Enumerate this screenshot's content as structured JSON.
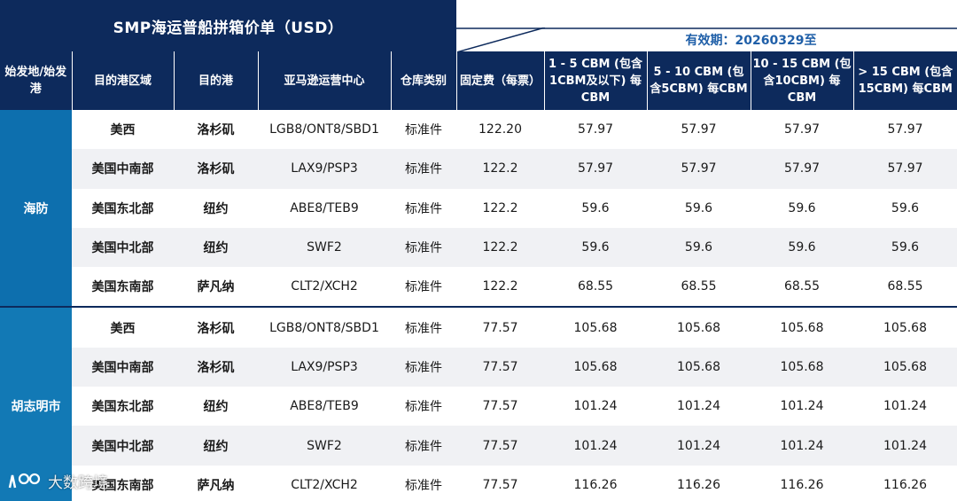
{
  "title": "SMP海运普船拼箱价单（USD）",
  "validity": "有效期：20260329至",
  "headers": [
    "始发地/始发港",
    "目的港区域",
    "目的港",
    "亚马逊运营中心",
    "仓库类别",
    "固定费（每票）",
    "1 - 5 CBM (包含1CBM及以下) 每CBM",
    "5 - 10 CBM (包含5CBM) 每CBM",
    "10 - 15 CBM (包含10CBM) 每CBM",
    "> 15 CBM (包含15CBM) 每CBM"
  ],
  "groups": [
    {
      "origin": "海防",
      "rows": [
        {
          "region": "美西",
          "port": "洛杉矶",
          "fc": "LGB8/ONT8/SBD1",
          "category": "标准件",
          "fixed": "122.20",
          "r1": "57.97",
          "r2": "57.97",
          "r3": "57.97",
          "r4": "57.97"
        },
        {
          "region": "美国中南部",
          "port": "洛杉矶",
          "fc": "LAX9/PSP3",
          "category": "标准件",
          "fixed": "122.2",
          "r1": "57.97",
          "r2": "57.97",
          "r3": "57.97",
          "r4": "57.97"
        },
        {
          "region": "美国东北部",
          "port": "纽约",
          "fc": "ABE8/TEB9",
          "category": "标准件",
          "fixed": "122.2",
          "r1": "59.6",
          "r2": "59.6",
          "r3": "59.6",
          "r4": "59.6"
        },
        {
          "region": "美国中北部",
          "port": "纽约",
          "fc": "SWF2",
          "category": "标准件",
          "fixed": "122.2",
          "r1": "59.6",
          "r2": "59.6",
          "r3": "59.6",
          "r4": "59.6"
        },
        {
          "region": "美国东南部",
          "port": "萨凡纳",
          "fc": "CLT2/XCH2",
          "category": "标准件",
          "fixed": "122.2",
          "r1": "68.55",
          "r2": "68.55",
          "r3": "68.55",
          "r4": "68.55"
        }
      ]
    },
    {
      "origin": "胡志明市",
      "rows": [
        {
          "region": "美西",
          "port": "洛杉矶",
          "fc": "LGB8/ONT8/SBD1",
          "category": "标准件",
          "fixed": "77.57",
          "r1": "105.68",
          "r2": "105.68",
          "r3": "105.68",
          "r4": "105.68"
        },
        {
          "region": "美国中南部",
          "port": "洛杉矶",
          "fc": "LAX9/PSP3",
          "category": "标准件",
          "fixed": "77.57",
          "r1": "105.68",
          "r2": "105.68",
          "r3": "105.68",
          "r4": "105.68"
        },
        {
          "region": "美国东北部",
          "port": "纽约",
          "fc": "ABE8/TEB9",
          "category": "标准件",
          "fixed": "77.57",
          "r1": "101.24",
          "r2": "101.24",
          "r3": "101.24",
          "r4": "101.24"
        },
        {
          "region": "美国中北部",
          "port": "纽约",
          "fc": "SWF2",
          "category": "标准件",
          "fixed": "77.57",
          "r1": "101.24",
          "r2": "101.24",
          "r3": "101.24",
          "r4": "101.24"
        },
        {
          "region": "美国东南部",
          "port": "萨凡纳",
          "fc": "CLT2/XCH2",
          "category": "标准件",
          "fixed": "77.57",
          "r1": "116.26",
          "r2": "116.26",
          "r3": "116.26",
          "r4": "116.26"
        }
      ]
    }
  ],
  "watermark": "大数跨境",
  "colors": {
    "header_bg": "#0d2a5c",
    "origin_bg": "#0d6fae",
    "validity_text": "#1f5fa8",
    "band_bg": "#f0f1f4"
  }
}
